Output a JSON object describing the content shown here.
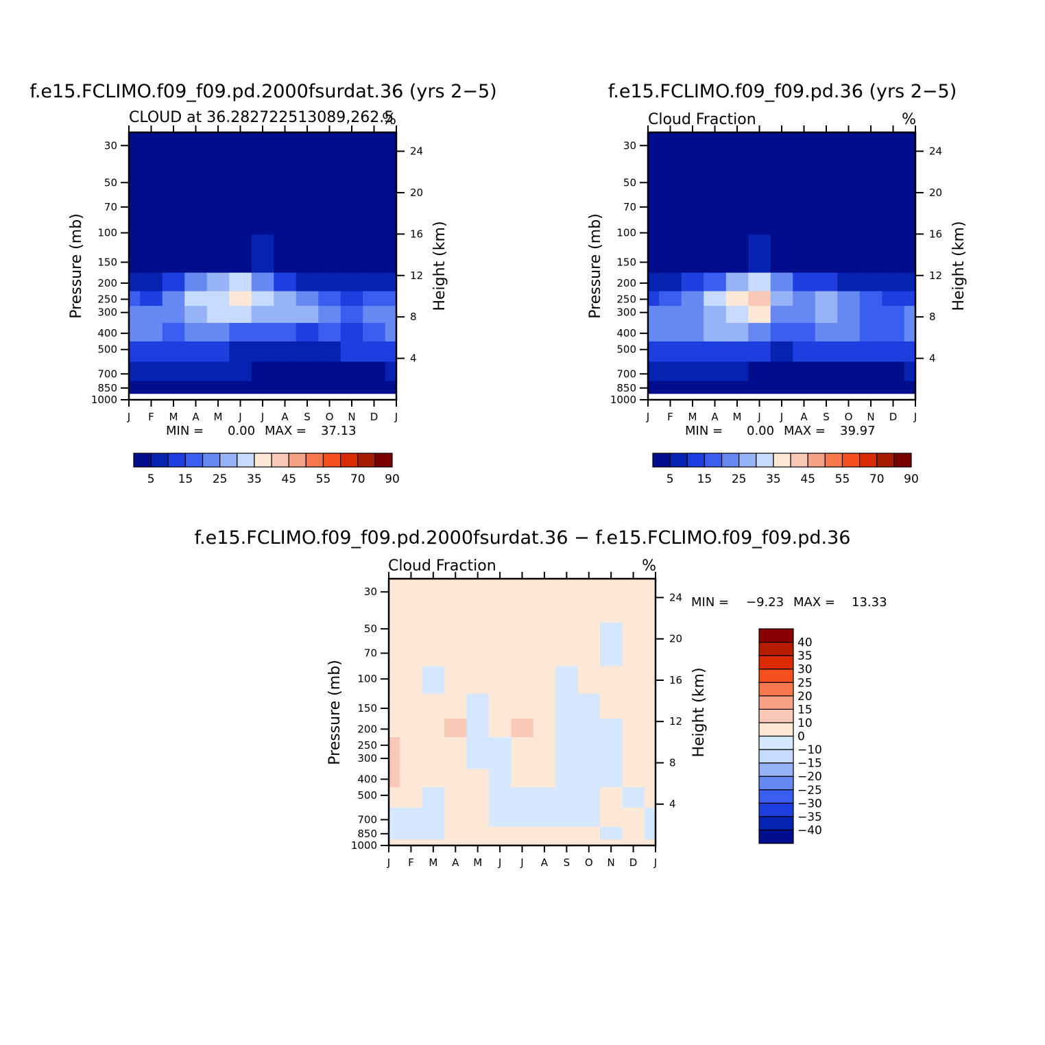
{
  "chart_data": [
    {
      "type": "heatmap",
      "title": "f.e15.FCLIMO.f09_f09.pd.2000fsurdat.36 (yrs 2−5)",
      "subtitle_left": "CLOUD at 36.282722513089,262.5",
      "subtitle_right": "%",
      "ylabel": "Pressure (mb)",
      "ylabel_right": "Height (km)",
      "x_ticks": [
        "J",
        "F",
        "M",
        "A",
        "M",
        "J",
        "J",
        "A",
        "S",
        "O",
        "N",
        "D",
        "J"
      ],
      "y_ticks": [
        30,
        50,
        70,
        100,
        150,
        200,
        250,
        300,
        400,
        500,
        700,
        850,
        1000
      ],
      "y_ticks_right": [
        24,
        20,
        16,
        12,
        8,
        4
      ],
      "ylim": [
        1000,
        25
      ],
      "stats": {
        "min_label": "MIN =",
        "min": "0.00",
        "max_label": "MAX =",
        "max": "37.13"
      },
      "levels": [
        0,
        5,
        10,
        15,
        20,
        25,
        30,
        35,
        40,
        45,
        50,
        55,
        60,
        70,
        80,
        90
      ],
      "colorbar_labels": [
        "5",
        "15",
        "25",
        "35",
        "45",
        "55",
        "70",
        "90"
      ],
      "color_levels": [
        "#000d8c",
        "#0523b0",
        "#1e3fe0",
        "#3a5eef",
        "#6688f2",
        "#97b3f7",
        "#c7daff",
        "#fde7d6",
        "#f9c8b6",
        "#f7a286",
        "#f7784c",
        "#f54f1e",
        "#da2a00",
        "#a71c00",
        "#7a0000"
      ],
      "y_centers": [
        30,
        70,
        150,
        200,
        250,
        300,
        400,
        500,
        700,
        850,
        1000
      ],
      "values": [
        [
          1,
          1,
          1,
          1,
          1,
          1,
          1,
          1,
          1,
          1,
          1,
          1,
          1
        ],
        [
          1,
          1,
          1,
          1,
          1,
          1,
          1,
          1,
          1,
          1,
          1,
          1,
          1
        ],
        [
          1,
          1,
          1,
          2,
          3,
          4,
          6,
          4,
          2,
          1,
          1,
          1,
          1
        ],
        [
          9,
          7,
          10,
          20,
          26,
          30,
          24,
          14,
          9,
          6,
          5,
          7,
          9
        ],
        [
          15,
          14,
          20,
          30,
          33,
          37,
          30,
          25,
          20,
          16,
          14,
          15,
          15
        ],
        [
          24,
          20,
          24,
          28,
          31,
          33,
          27,
          25,
          25,
          20,
          15,
          20,
          24
        ],
        [
          24,
          22,
          19,
          21,
          21,
          18,
          15,
          15,
          13,
          15,
          14,
          17,
          24
        ],
        [
          14,
          13,
          12,
          10,
          11,
          9,
          8,
          7,
          8,
          9,
          10,
          13,
          14
        ],
        [
          7,
          7,
          6,
          6,
          5,
          5,
          3,
          3,
          4,
          4,
          4,
          4,
          7
        ],
        [
          4,
          3,
          3,
          2,
          2,
          2,
          1,
          1,
          1,
          1,
          1,
          2,
          4
        ],
        [
          0,
          0,
          0,
          0,
          0,
          0,
          0,
          0,
          0,
          0,
          0,
          0,
          0
        ]
      ]
    },
    {
      "type": "heatmap",
      "title": "f.e15.FCLIMO.f09_f09.pd.36 (yrs 2−5)",
      "subtitle_left": "Cloud Fraction",
      "subtitle_right": "%",
      "ylabel": "Pressure (mb)",
      "ylabel_right": "Height (km)",
      "x_ticks": [
        "J",
        "F",
        "M",
        "A",
        "M",
        "J",
        "J",
        "A",
        "S",
        "O",
        "N",
        "D",
        "J"
      ],
      "y_ticks": [
        30,
        50,
        70,
        100,
        150,
        200,
        250,
        300,
        400,
        500,
        700,
        850,
        1000
      ],
      "y_ticks_right": [
        24,
        20,
        16,
        12,
        8,
        4
      ],
      "ylim": [
        1000,
        25
      ],
      "stats": {
        "min_label": "MIN =",
        "min": "0.00",
        "max_label": "MAX =",
        "max": "39.97"
      },
      "levels": [
        0,
        5,
        10,
        15,
        20,
        25,
        30,
        35,
        40,
        45,
        50,
        55,
        60,
        70,
        80,
        90
      ],
      "colorbar_labels": [
        "5",
        "15",
        "25",
        "35",
        "45",
        "55",
        "70",
        "90"
      ],
      "color_levels": [
        "#000d8c",
        "#0523b0",
        "#1e3fe0",
        "#3a5eef",
        "#6688f2",
        "#97b3f7",
        "#c7daff",
        "#fde7d6",
        "#f9c8b6",
        "#f7a286",
        "#f7784c",
        "#f54f1e",
        "#da2a00",
        "#a71c00",
        "#7a0000"
      ],
      "y_centers": [
        30,
        70,
        150,
        200,
        250,
        300,
        400,
        500,
        700,
        850,
        1000
      ],
      "values": [
        [
          1,
          1,
          1,
          1,
          1,
          1,
          1,
          1,
          1,
          1,
          1,
          1,
          1
        ],
        [
          1,
          1,
          1,
          1,
          1,
          1,
          1,
          1,
          1,
          1,
          1,
          1,
          1
        ],
        [
          1,
          1,
          1,
          2,
          4,
          6,
          3,
          2,
          2,
          1,
          1,
          1,
          1
        ],
        [
          8,
          7,
          10,
          18,
          27,
          33,
          20,
          14,
          12,
          9,
          7,
          6,
          8
        ],
        [
          14,
          15,
          22,
          30,
          36,
          40,
          26,
          24,
          28,
          22,
          16,
          14,
          14
        ],
        [
          20,
          20,
          24,
          28,
          33,
          35,
          22,
          24,
          27,
          24,
          19,
          18,
          20
        ],
        [
          20,
          22,
          22,
          26,
          26,
          23,
          15,
          18,
          20,
          20,
          16,
          16,
          20
        ],
        [
          13,
          13,
          13,
          12,
          13,
          10,
          9,
          10,
          12,
          11,
          12,
          13,
          13
        ],
        [
          7,
          6,
          6,
          6,
          5,
          4,
          3,
          3,
          3,
          4,
          4,
          4,
          7
        ],
        [
          3,
          2,
          2,
          2,
          2,
          1,
          1,
          1,
          1,
          1,
          2,
          3,
          3
        ],
        [
          0,
          0,
          0,
          0,
          0,
          0,
          0,
          0,
          0,
          0,
          0,
          0,
          0
        ]
      ]
    },
    {
      "type": "heatmap",
      "title": "f.e15.FCLIMO.f09_f09.pd.2000fsurdat.36 − f.e15.FCLIMO.f09_f09.pd.36",
      "subtitle_left": "Cloud Fraction",
      "subtitle_right": "%",
      "ylabel": "Pressure (mb)",
      "ylabel_right": "Height (km)",
      "x_ticks": [
        "J",
        "F",
        "M",
        "A",
        "M",
        "J",
        "J",
        "A",
        "S",
        "O",
        "N",
        "D",
        "J"
      ],
      "y_ticks": [
        30,
        50,
        70,
        100,
        150,
        200,
        250,
        300,
        400,
        500,
        700,
        850,
        1000
      ],
      "y_ticks_right": [
        24,
        20,
        16,
        12,
        8,
        4
      ],
      "ylim": [
        1000,
        25
      ],
      "stats": {
        "min_label": "MIN =",
        "min": "−9.23",
        "max_label": "MAX =",
        "max": "13.33"
      },
      "levels": [
        -45,
        -40,
        -35,
        -30,
        -25,
        -20,
        -15,
        -10,
        0,
        10,
        15,
        20,
        25,
        30,
        35,
        40,
        45
      ],
      "colorbar_labels": [
        "40",
        "35",
        "30",
        "25",
        "20",
        "15",
        "10",
        "0",
        "−10",
        "−15",
        "−20",
        "−25",
        "−30",
        "−35",
        "−40"
      ],
      "color_levels": [
        "#000d8c",
        "#0523b0",
        "#1e3fe0",
        "#3a5eef",
        "#6688f2",
        "#97b3f7",
        "#c7daff",
        "#d6e8ff",
        "#fde7d6",
        "#f9c8b6",
        "#f7a286",
        "#f7784c",
        "#f54f1e",
        "#da2a00",
        "#b81c00",
        "#8a0000"
      ],
      "y_centers": [
        30,
        70,
        100,
        150,
        200,
        250,
        300,
        400,
        500,
        700,
        850,
        1000
      ],
      "values": [
        [
          1,
          1,
          1,
          1,
          1,
          1,
          1,
          1,
          1,
          1,
          1,
          1,
          1
        ],
        [
          1,
          1,
          1,
          1,
          1,
          1,
          1,
          1,
          1,
          1,
          -1,
          1,
          1
        ],
        [
          1,
          1,
          -1,
          1,
          1,
          1,
          1,
          1,
          -1,
          1,
          1,
          1,
          1
        ],
        [
          1,
          1,
          1,
          1,
          -1,
          1,
          1,
          1,
          -1,
          -1,
          1,
          1,
          1
        ],
        [
          1,
          1,
          1,
          11,
          -1,
          1,
          12,
          1,
          -1,
          -1,
          -1,
          1,
          1
        ],
        [
          11,
          1,
          1,
          1,
          -2,
          -1,
          1,
          1,
          -2,
          -2,
          -1,
          1,
          1
        ],
        [
          12,
          1,
          1,
          1,
          -2,
          -2,
          1,
          1,
          -2,
          -2,
          -1,
          1,
          1
        ],
        [
          11,
          1,
          1,
          1,
          1,
          -2,
          1,
          1,
          -2,
          -2,
          -1,
          1,
          1
        ],
        [
          1,
          1,
          -2,
          1,
          1,
          -1,
          -1,
          -1,
          -2,
          -1,
          1,
          -1,
          1
        ],
        [
          -2,
          -1,
          -2,
          1,
          1,
          -2,
          -2,
          -2,
          -2,
          -1,
          1,
          1,
          -1
        ],
        [
          -2,
          -1,
          -2,
          1,
          1,
          1,
          1,
          1,
          1,
          1,
          -1,
          1,
          -1
        ],
        [
          1,
          1,
          1,
          1,
          1,
          1,
          1,
          1,
          1,
          1,
          1,
          1,
          1
        ]
      ]
    }
  ]
}
